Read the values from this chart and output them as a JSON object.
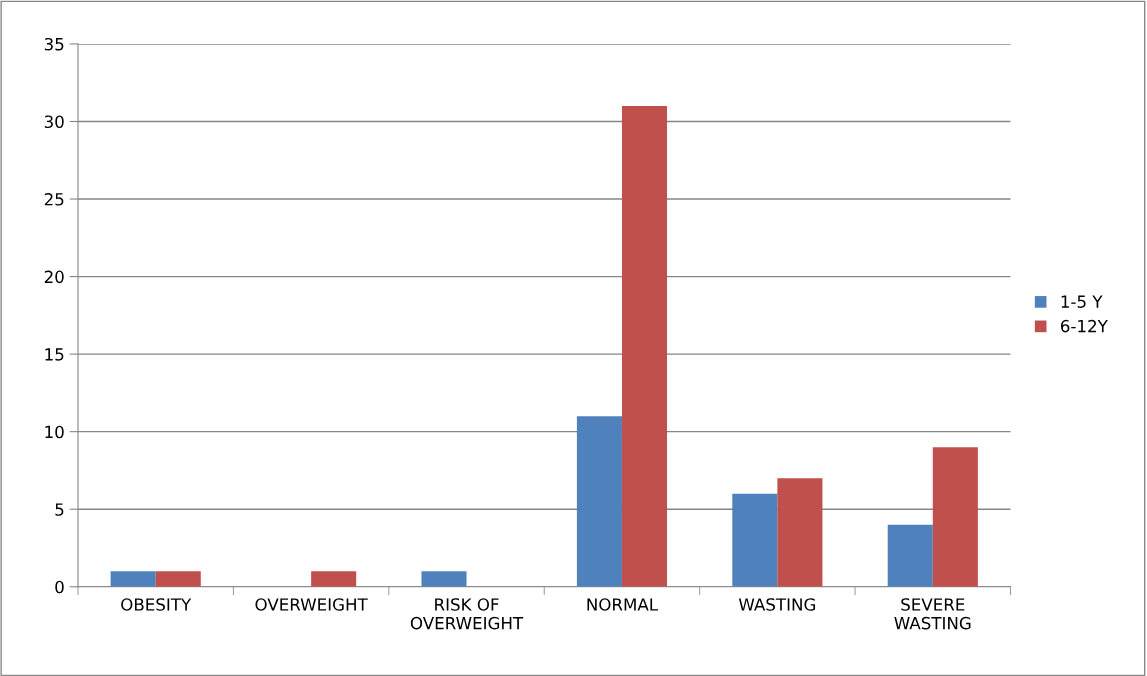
{
  "chart_data": {
    "type": "bar",
    "categories": [
      "OBESITY",
      "OVERWEIGHT",
      "RISK OF\nOVERWEIGHT",
      "NORMAL",
      "WASTING",
      "SEVERE\nWASTING"
    ],
    "series": [
      {
        "name": "1-5 Y",
        "color": "#4f81bd",
        "values": [
          1,
          0,
          1,
          11,
          6,
          4
        ]
      },
      {
        "name": "6-12Y",
        "color": "#c0504d",
        "values": [
          1,
          1,
          0,
          31,
          7,
          9
        ]
      }
    ],
    "ylim": [
      0,
      35
    ],
    "yticks": [
      0,
      5,
      10,
      15,
      20,
      25,
      30,
      35
    ],
    "grid": "y",
    "legend": "right"
  }
}
